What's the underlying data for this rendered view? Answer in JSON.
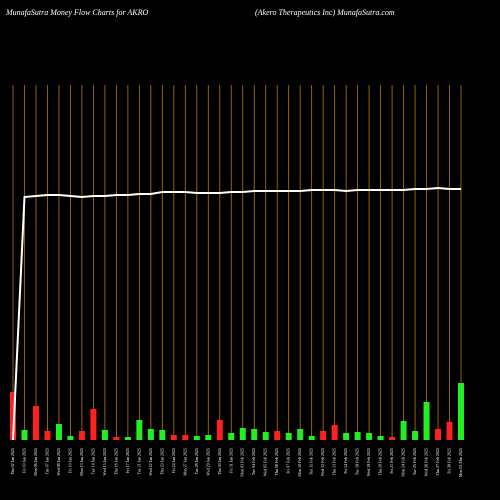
{
  "chart_data": {
    "type": "bar",
    "title": "MunafaSutra  Money Flow  Charts for AKRO",
    "subtitle": "(Akero  Therapeutics Inc) MunafaSutra.com",
    "categories": [
      "Thu 02 Jan 2025",
      "Fri 03 Jan 2025",
      "Mon 06 Jan 2025",
      "Tue 07 Jan 2025",
      "Wed 08 Jan 2025",
      "Fri 10 Jan 2025",
      "Mon 13 Jan 2025",
      "Tue 14 Jan 2025",
      "Wed 15 Jan 2025",
      "Thu 16 Jan 2025",
      "Fri 17 Jan 2025",
      "Tue 21 Jan 2025",
      "Wed 22 Jan 2025",
      "Thu 23 Jan 2025",
      "Fri 24 Jan 2025",
      "Mon 27 Jan 2025",
      "Tue 28 Jan 2025",
      "Wed 29 Jan 2025",
      "Thu 30 Jan 2025",
      "Fri 31 Jan 2025",
      "Mon 03 Feb 2025",
      "Tue 04 Feb 2025",
      "Wed 05 Feb 2025",
      "Thu 06 Feb 2025",
      "Fri 07 Feb 2025",
      "Mon 10 Feb 2025",
      "Tue 11 Feb 2025",
      "Wed 12 Feb 2025",
      "Thu 13 Feb 2025",
      "Fri 14 Feb 2025",
      "Tue 18 Feb 2025",
      "Wed 19 Feb 2025",
      "Thu 20 Feb 2025",
      "Fri 21 Feb 2025",
      "Mon 24 Feb 2025",
      "Tue 25 Feb 2025",
      "Wed 26 Feb 2025",
      "Thu 27 Feb 2025",
      "Fri 28 Feb 2025",
      "Mon 03 Mar 2025"
    ],
    "values": [
      48,
      10,
      34,
      9,
      16,
      4,
      9,
      31,
      10,
      3,
      3,
      20,
      11,
      10,
      5,
      5,
      4,
      5,
      20,
      7,
      12,
      11,
      8,
      9,
      7,
      11,
      4,
      9,
      15,
      7,
      8,
      7,
      4,
      3,
      19,
      9,
      38,
      11,
      18,
      57
    ],
    "bar_colors": [
      "#ff2020",
      "#22ee22",
      "#ff2020",
      "#ff2020",
      "#22ee22",
      "#22ee22",
      "#ff2020",
      "#ff2020",
      "#22ee22",
      "#ff2020",
      "#22ee22",
      "#22ee22",
      "#22ee22",
      "#22ee22",
      "#ff2020",
      "#ff2020",
      "#22ee22",
      "#22ee22",
      "#ff2020",
      "#22ee22",
      "#22ee22",
      "#22ee22",
      "#22ee22",
      "#ff2020",
      "#22ee22",
      "#22ee22",
      "#22ee22",
      "#ff2020",
      "#ff2020",
      "#22ee22",
      "#22ee22",
      "#22ee22",
      "#22ee22",
      "#ff2020",
      "#22ee22",
      "#22ee22",
      "#22ee22",
      "#ff2020",
      "#ff2020",
      "#22ee22"
    ],
    "line": {
      "color": "#ffffff",
      "values": [
        0,
        243,
        244,
        245,
        245,
        244,
        243,
        244,
        244,
        245,
        245,
        246,
        246,
        248,
        248,
        248,
        247,
        247,
        247,
        248,
        248,
        249,
        249,
        249,
        249,
        249,
        250,
        250,
        250,
        249,
        250,
        250,
        250,
        250,
        250,
        251,
        251,
        252,
        251,
        251
      ]
    },
    "grid": true,
    "grid_color": "#b8780a"
  }
}
